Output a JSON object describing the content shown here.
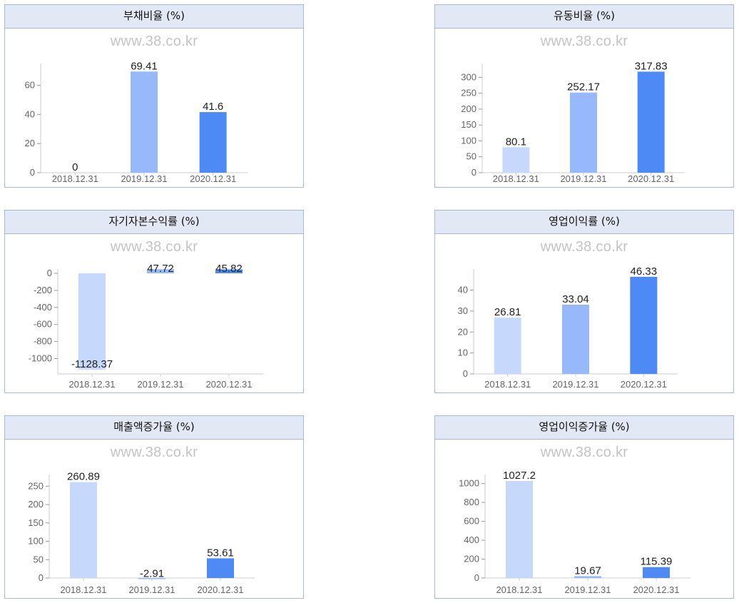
{
  "watermark": "www.38.co.kr",
  "colors": [
    "#c6d8fb",
    "#97b9fb",
    "#4d8af6"
  ],
  "chart_data": [
    {
      "type": "bar",
      "title": "부채비율 (%)",
      "categories": [
        "2018.12.31",
        "2019.12.31",
        "2020.12.31"
      ],
      "values": [
        0,
        69.41,
        41.6
      ],
      "value_labels": [
        "0",
        "69.41",
        "41.6"
      ],
      "yticks": [
        0,
        20,
        40,
        60
      ],
      "ylim": [
        0,
        72
      ]
    },
    {
      "type": "bar",
      "title": "유동비율 (%)",
      "categories": [
        "2018.12.31",
        "2019.12.31",
        "2020.12.31"
      ],
      "values": [
        80.1,
        252.17,
        317.83
      ],
      "value_labels": [
        "80.1",
        "252.17",
        "317.83"
      ],
      "yticks": [
        0,
        50,
        100,
        150,
        200,
        250,
        300
      ],
      "ylim": [
        0,
        330
      ]
    },
    {
      "type": "bar",
      "title": "자기자본수익률 (%)",
      "categories": [
        "2018.12.31",
        "2019.12.31",
        "2020.12.31"
      ],
      "values": [
        -1128.37,
        47.72,
        45.82
      ],
      "value_labels": [
        "-1128.37",
        "47.72",
        "45.82"
      ],
      "yticks": [
        0,
        -200,
        -400,
        -600,
        -800,
        -1000
      ],
      "ylim": [
        -1180,
        0
      ]
    },
    {
      "type": "bar",
      "title": "영업이익률 (%)",
      "categories": [
        "2018.12.31",
        "2019.12.31",
        "2020.12.31"
      ],
      "values": [
        26.81,
        33.04,
        46.33
      ],
      "value_labels": [
        "26.81",
        "33.04",
        "46.33"
      ],
      "yticks": [
        0,
        10,
        20,
        30,
        40
      ],
      "ylim": [
        0,
        48
      ]
    },
    {
      "type": "bar",
      "title": "매출액증가율 (%)",
      "categories": [
        "2018.12.31",
        "2019.12.31",
        "2020.12.31"
      ],
      "values": [
        260.89,
        -2.91,
        53.61
      ],
      "value_labels": [
        "260.89",
        "-2.91",
        "53.61"
      ],
      "yticks": [
        0,
        50,
        100,
        150,
        200,
        250
      ],
      "ylim": [
        0,
        270
      ]
    },
    {
      "type": "bar",
      "title": "영업이익증가율 (%)",
      "categories": [
        "2018.12.31",
        "2019.12.31",
        "2020.12.31"
      ],
      "values": [
        1027.2,
        19.67,
        115.39
      ],
      "value_labels": [
        "1027.2",
        "19.67",
        "115.39"
      ],
      "yticks": [
        0,
        200,
        400,
        600,
        800,
        1000
      ],
      "ylim": [
        0,
        1050
      ]
    }
  ]
}
